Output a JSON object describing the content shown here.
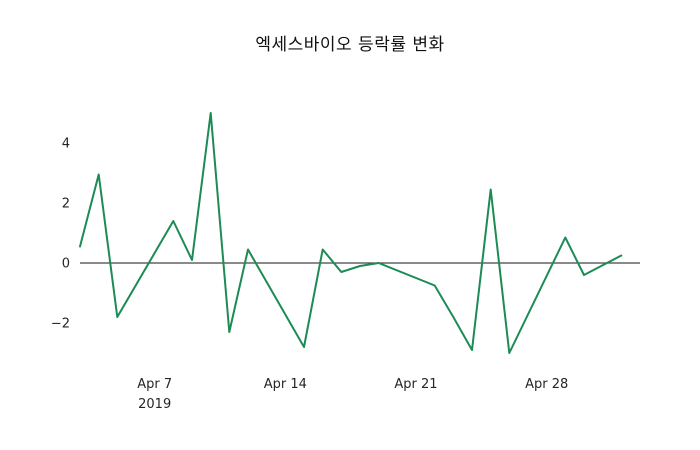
{
  "figure": {
    "title": "엑세스바이오 등락률 변화",
    "background_color": "#ffffff"
  },
  "chart_data": {
    "type": "line",
    "title": "엑세스바이오 등락률 변화",
    "xlabel": "",
    "ylabel": "",
    "x": [
      "2019-04-03",
      "2019-04-04",
      "2019-04-05",
      "2019-04-08",
      "2019-04-09",
      "2019-04-10",
      "2019-04-11",
      "2019-04-12",
      "2019-04-15",
      "2019-04-16",
      "2019-04-17",
      "2019-04-18",
      "2019-04-19",
      "2019-04-22",
      "2019-04-23",
      "2019-04-24",
      "2019-04-25",
      "2019-04-26",
      "2019-04-29",
      "2019-04-30",
      "2019-05-02"
    ],
    "values": [
      0.55,
      2.95,
      -1.8,
      1.4,
      0.1,
      5.0,
      -2.3,
      0.45,
      -2.8,
      0.45,
      -0.3,
      -0.1,
      0.0,
      -0.75,
      -1.8,
      -2.9,
      2.45,
      -3.0,
      0.85,
      -0.4,
      0.25
    ],
    "line_color": "#1c8b54",
    "zeroline_color": "#444444",
    "xlim": [
      "2019-04-03",
      "2019-05-03"
    ],
    "ylim": [
      -3.5,
      5.6
    ],
    "grid": false,
    "legend": false,
    "yticks": [
      {
        "value": -2,
        "label": "−2"
      },
      {
        "value": 0,
        "label": "0"
      },
      {
        "value": 2,
        "label": "2"
      },
      {
        "value": 4,
        "label": "4"
      }
    ],
    "xticks": [
      {
        "date": "2019-04-07",
        "label": "Apr 7",
        "sub": "2019"
      },
      {
        "date": "2019-04-14",
        "label": "Apr 14"
      },
      {
        "date": "2019-04-21",
        "label": "Apr 21"
      },
      {
        "date": "2019-04-28",
        "label": "Apr 28"
      }
    ]
  }
}
